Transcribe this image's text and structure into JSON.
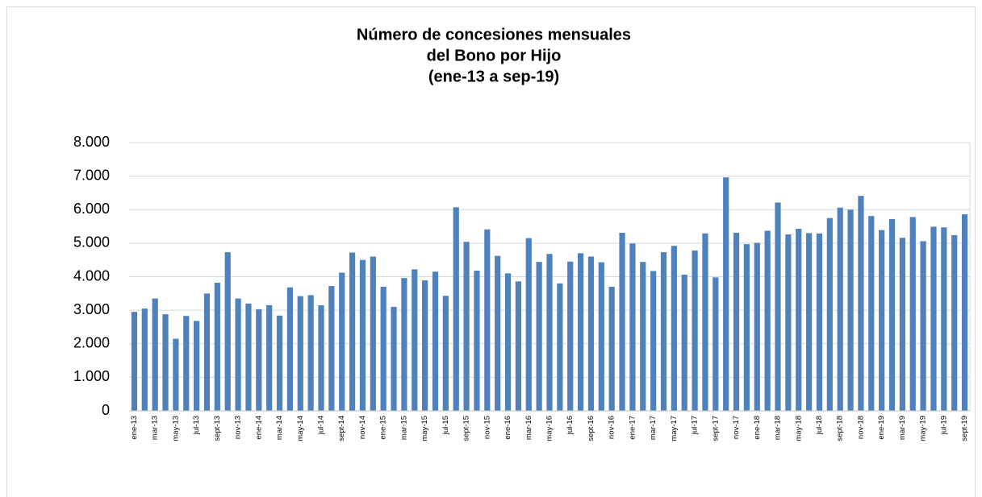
{
  "chart_data": {
    "type": "bar",
    "title": [
      "Número de concesiones mensuales",
      "del Bono por Hijo",
      "(ene-13 a sep-19)"
    ],
    "categories": [
      "ene-13",
      null,
      "mar-13",
      null,
      "may-13",
      null,
      "jul-13",
      null,
      "sept-13",
      null,
      "nov-13",
      null,
      "ene-14",
      null,
      "mar-14",
      null,
      "may-14",
      null,
      "jul-14",
      null,
      "sept-14",
      null,
      "nov-14",
      null,
      "ene-15",
      null,
      "mar-15",
      null,
      "may-15",
      null,
      "jul-15",
      null,
      "sept-15",
      null,
      "nov-15",
      null,
      "ene-16",
      null,
      "mar-16",
      null,
      "may-16",
      null,
      "jul-16",
      null,
      "sept-16",
      null,
      "nov-16",
      null,
      "ene-17",
      null,
      "mar-17",
      null,
      "may-17",
      null,
      "jul-17",
      null,
      "sept-17",
      null,
      "nov-17",
      null,
      "ene-18",
      null,
      "mar-18",
      null,
      "may-18",
      null,
      "jul-18",
      null,
      "sept-18",
      null,
      "nov-18",
      null,
      "ene-19",
      null,
      "mar-19",
      null,
      "may-19",
      null,
      "jul-19",
      null,
      "sept-19"
    ],
    "values": [
      2950,
      3050,
      3350,
      2880,
      2150,
      2830,
      2680,
      3500,
      3820,
      4730,
      3350,
      3200,
      3030,
      3150,
      2840,
      3680,
      3420,
      3450,
      3150,
      3720,
      4120,
      4720,
      4500,
      4600,
      3700,
      3100,
      3960,
      4220,
      3890,
      4150,
      3430,
      6070,
      5040,
      4180,
      5410,
      4620,
      4100,
      3860,
      5150,
      4440,
      4680,
      3800,
      4450,
      4700,
      4600,
      4430,
      3700,
      5310,
      4990,
      4440,
      4170,
      4730,
      4920,
      4060,
      4780,
      5290,
      3980,
      6960,
      5310,
      4970,
      5010,
      5370,
      6210,
      5260,
      5430,
      5300,
      5290,
      5750,
      6060,
      6000,
      6410,
      5810,
      5390,
      5720,
      5160,
      5780,
      5060,
      5490,
      5470,
      5240,
      5860
    ],
    "color": "#4f81bd",
    "ylim": [
      0,
      8000
    ],
    "yticks": [
      0,
      {
        "value": 1000,
        "label": "1.000"
      },
      {
        "value": 2000,
        "label": "2.000"
      },
      {
        "value": 3000,
        "label": "3.000"
      },
      {
        "value": 4000,
        "label": "4.000"
      },
      {
        "value": 5000,
        "label": "5.000"
      },
      {
        "value": 6000,
        "label": "6.000"
      },
      {
        "value": 7000,
        "label": "7.000"
      },
      {
        "value": 8000,
        "label": "8.000"
      }
    ],
    "grid": true
  }
}
